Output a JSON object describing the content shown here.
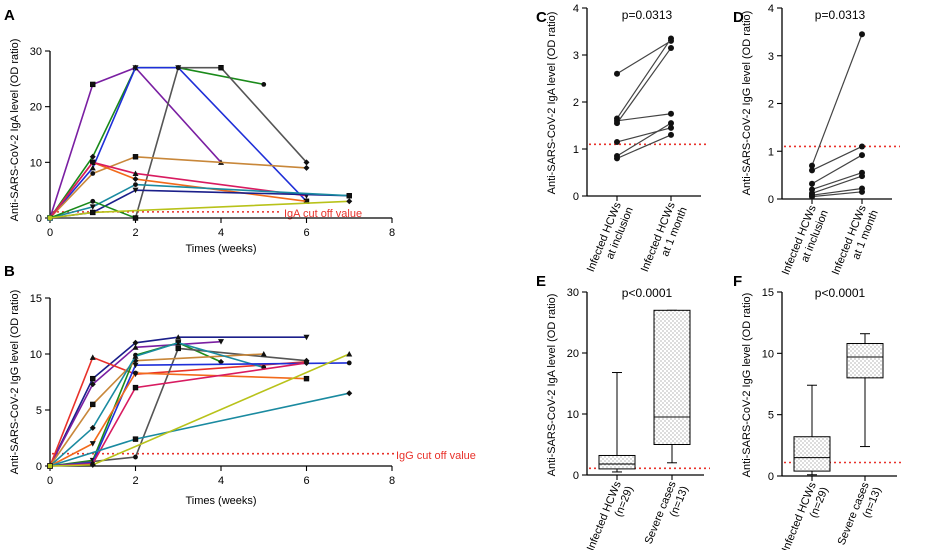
{
  "colors": {
    "purple": "#7a1fa2",
    "green": "#1a8a1a",
    "blue": "#1f2fd8",
    "gray": "#555555",
    "brown": "#c8873a",
    "orange": "#f26a1b",
    "magenta": "#d81b60",
    "red": "#e8312a",
    "teal": "#1a8aa0",
    "yellowgreen": "#b8c21a",
    "dark": "#222222",
    "darkblue": "#1b1f8a"
  },
  "chart_data": [
    {
      "panel": "A",
      "type": "line",
      "xlabel": "Times (weeks)",
      "ylabel": "Anti-SARS-CoV-2 IgA level (OD ratio)",
      "xlim": [
        0,
        8
      ],
      "ylim": [
        0,
        30
      ],
      "xticks": [
        "0",
        "2",
        "4",
        "6",
        "8"
      ],
      "yticks": [
        "0",
        "10",
        "20",
        "30"
      ],
      "cutoff": {
        "value": 1.1,
        "label": "IgA cut off value"
      },
      "series": [
        {
          "name": "s1",
          "color": "purple",
          "x": [
            0,
            1,
            2,
            4
          ],
          "y": [
            0,
            24,
            27,
            10
          ]
        },
        {
          "name": "s2",
          "color": "green",
          "x": [
            0,
            1,
            2,
            3,
            5
          ],
          "y": [
            0,
            11,
            27,
            27,
            24
          ]
        },
        {
          "name": "s3",
          "color": "blue",
          "x": [
            0,
            1,
            2,
            3,
            6
          ],
          "y": [
            0,
            9,
            27,
            27,
            3
          ]
        },
        {
          "name": "s4",
          "color": "gray",
          "x": [
            0,
            2,
            3,
            4,
            6
          ],
          "y": [
            0,
            0,
            27,
            27,
            10
          ]
        },
        {
          "name": "s5",
          "color": "brown",
          "x": [
            0,
            1,
            2,
            6
          ],
          "y": [
            0,
            8,
            11,
            9
          ]
        },
        {
          "name": "s6",
          "color": "orange",
          "x": [
            0,
            1,
            2,
            6
          ],
          "y": [
            0,
            10,
            7,
            3
          ]
        },
        {
          "name": "s7",
          "color": "magenta",
          "x": [
            0,
            1,
            2,
            6
          ],
          "y": [
            0,
            10,
            8,
            4
          ]
        },
        {
          "name": "s8",
          "color": "darkblue",
          "x": [
            0,
            1,
            2,
            7
          ],
          "y": [
            0,
            1,
            5,
            4
          ]
        },
        {
          "name": "s9",
          "color": "teal",
          "x": [
            0,
            1,
            2,
            7
          ],
          "y": [
            0,
            2,
            6,
            4
          ]
        },
        {
          "name": "s10",
          "color": "green",
          "x": [
            0,
            1,
            2
          ],
          "y": [
            0,
            3,
            0
          ]
        },
        {
          "name": "s11",
          "color": "yellowgreen",
          "x": [
            0,
            1,
            7
          ],
          "y": [
            0,
            1,
            3
          ]
        }
      ]
    },
    {
      "panel": "B",
      "type": "line",
      "xlabel": "Times (weeks)",
      "ylabel": "Anti-SARS-CoV-2 IgG level (OD ratio)",
      "xlim": [
        0,
        8
      ],
      "ylim": [
        0,
        15
      ],
      "xticks": [
        "0",
        "2",
        "4",
        "6",
        "8"
      ],
      "yticks": [
        "0",
        "5",
        "10",
        "15"
      ],
      "cutoff": {
        "value": 1.1,
        "label": "IgG cut off value"
      },
      "series": [
        {
          "name": "s1",
          "color": "darkblue",
          "x": [
            0,
            1,
            2,
            3,
            6
          ],
          "y": [
            0,
            7.8,
            11,
            11.5,
            11.5
          ]
        },
        {
          "name": "s2",
          "color": "purple",
          "x": [
            0,
            1,
            2,
            4
          ],
          "y": [
            0,
            7.3,
            10.6,
            11.1
          ]
        },
        {
          "name": "s3",
          "color": "red",
          "x": [
            0,
            1,
            2,
            6
          ],
          "y": [
            0,
            9.7,
            8.2,
            9.3
          ]
        },
        {
          "name": "s4",
          "color": "green",
          "x": [
            0,
            1,
            2,
            3,
            4
          ],
          "y": [
            0,
            0.5,
            9.9,
            11,
            9.3
          ]
        },
        {
          "name": "s5",
          "color": "gray",
          "x": [
            0,
            2,
            3,
            6
          ],
          "y": [
            0,
            0.8,
            10.5,
            9.4
          ]
        },
        {
          "name": "s6",
          "color": "brown",
          "x": [
            0,
            1,
            2,
            5
          ],
          "y": [
            0,
            5.5,
            9.4,
            10
          ]
        },
        {
          "name": "s7",
          "color": "teal",
          "x": [
            0,
            1,
            2,
            3,
            5
          ],
          "y": [
            0,
            3.4,
            9.8,
            11,
            8.8
          ]
        },
        {
          "name": "s8",
          "color": "blue",
          "x": [
            0,
            1,
            2,
            7
          ],
          "y": [
            0,
            0.3,
            9,
            9.2
          ]
        },
        {
          "name": "s9",
          "color": "orange",
          "x": [
            0,
            1,
            2,
            6
          ],
          "y": [
            0,
            2,
            8.3,
            7.8
          ]
        },
        {
          "name": "s10",
          "color": "magenta",
          "x": [
            0,
            1,
            2,
            6
          ],
          "y": [
            0,
            0.2,
            7,
            9.2
          ]
        },
        {
          "name": "s11",
          "color": "teal",
          "x": [
            0,
            2,
            7
          ],
          "y": [
            0,
            2.4,
            6.5
          ]
        },
        {
          "name": "s12",
          "color": "yellowgreen",
          "x": [
            0,
            1,
            7
          ],
          "y": [
            0,
            0.1,
            10
          ]
        }
      ]
    },
    {
      "panel": "C",
      "type": "line",
      "ylabel": "Anti-SARS-CoV-2 IgA level (OD ratio)",
      "ylim": [
        0,
        4
      ],
      "yticks": [
        "0",
        "1",
        "2",
        "3",
        "4"
      ],
      "categories": [
        "Infected HCWs at inclusion",
        "Infected HCWs at 1 month"
      ],
      "pvalue": "p=0.0313",
      "cutoff": {
        "value": 1.1
      },
      "pairs": [
        [
          2.6,
          3.3
        ],
        [
          1.65,
          3.35
        ],
        [
          1.55,
          3.15
        ],
        [
          1.6,
          1.75
        ],
        [
          1.15,
          1.45
        ],
        [
          0.85,
          1.55
        ],
        [
          0.8,
          1.3
        ]
      ]
    },
    {
      "panel": "D",
      "type": "line",
      "ylabel": "Anti-SARS-CoV-2 IgG level (OD ratio)",
      "ylim": [
        0,
        4
      ],
      "yticks": [
        "0",
        "1",
        "2",
        "3",
        "4"
      ],
      "categories": [
        "Infected HCWs at inclusion",
        "Infected HCWs at 1 month"
      ],
      "pvalue": "p=0.0313",
      "cutoff": {
        "value": 1.1
      },
      "pairs": [
        [
          0.7,
          3.45
        ],
        [
          0.6,
          1.1
        ],
        [
          0.32,
          0.92
        ],
        [
          0.2,
          0.55
        ],
        [
          0.12,
          0.48
        ],
        [
          0.08,
          0.22
        ],
        [
          0.05,
          0.15
        ]
      ]
    },
    {
      "panel": "E",
      "type": "box",
      "ylabel": "Anti-SARS-CoV-2 IgA level (OD ratio)",
      "ylim": [
        0,
        30
      ],
      "yticks": [
        "0",
        "10",
        "20",
        "30"
      ],
      "categories": [
        "Infected HCWs (n=29)",
        "Severe cases (n=13)"
      ],
      "pvalue": "p<0.0001",
      "cutoff": {
        "value": 1.1
      },
      "boxes": [
        {
          "min": 0.5,
          "q1": 1.0,
          "median": 1.8,
          "q3": 3.2,
          "max": 16.8
        },
        {
          "min": 2.0,
          "q1": 5.0,
          "median": 9.5,
          "q3": 27.0,
          "max": 27.0
        }
      ]
    },
    {
      "panel": "F",
      "type": "box",
      "ylabel": "Anti-SARS-CoV-2 IgG level (OD ratio)",
      "ylim": [
        0,
        15
      ],
      "yticks": [
        "0",
        "5",
        "10",
        "15"
      ],
      "categories": [
        "Infected HCWs (n=29)",
        "Severe cases (n=13)"
      ],
      "pvalue": "p<0.0001",
      "cutoff": {
        "value": 1.1
      },
      "boxes": [
        {
          "min": 0.1,
          "q1": 0.4,
          "median": 1.5,
          "q3": 3.2,
          "max": 7.4
        },
        {
          "min": 2.4,
          "q1": 8.0,
          "median": 9.7,
          "q3": 10.8,
          "max": 11.6
        }
      ]
    }
  ]
}
